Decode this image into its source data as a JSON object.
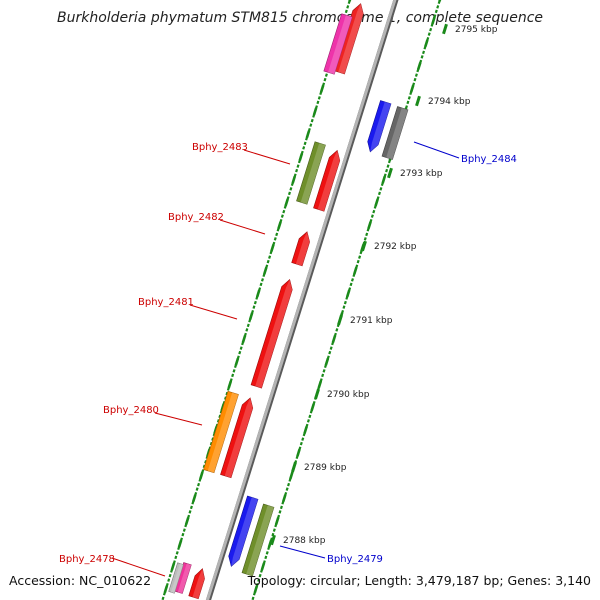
{
  "title": "Burkholderia phymatum STM815 chromosome 1, complete sequence",
  "footer": {
    "accession": "Accession: NC_010622",
    "summary": "Topology: circular; Length: 3,479,187 bp; Genes: 3,140"
  },
  "colors": {
    "backbone": "#8a8a8a",
    "ticks": "#1a8a1a",
    "label_red": "#cc0000",
    "label_blue": "#0000cc"
  },
  "scale_labels": [
    "2788 kbp",
    "2789 kbp",
    "2790 kbp",
    "2791 kbp",
    "2792 kbp",
    "2793 kbp",
    "2794 kbp",
    "2795 kbp"
  ],
  "genes": [
    {
      "name": "Bphy_2478",
      "label_color": "#cc0000"
    },
    {
      "name": "Bphy_2479",
      "label_color": "#0000cc"
    },
    {
      "name": "Bphy_2480",
      "label_color": "#cc0000"
    },
    {
      "name": "Bphy_2481",
      "label_color": "#cc0000"
    },
    {
      "name": "Bphy_2482",
      "label_color": "#cc0000"
    },
    {
      "name": "Bphy_2483",
      "label_color": "#cc0000"
    },
    {
      "name": "Bphy_2484",
      "label_color": "#0000cc"
    }
  ]
}
